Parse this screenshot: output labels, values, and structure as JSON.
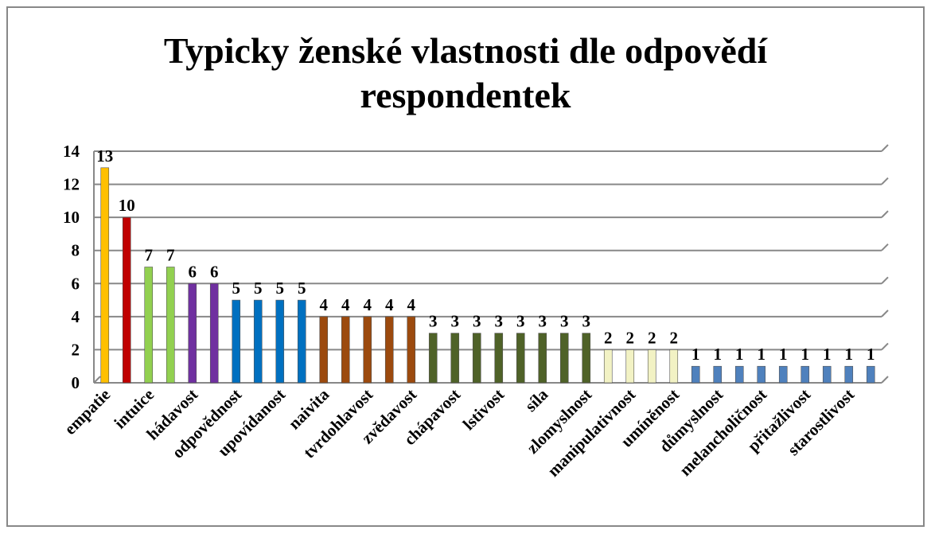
{
  "chart_data": {
    "type": "bar",
    "title": "Typicky ženské vlastnosti dle odpovědí respondentek",
    "categories": [
      "empatie",
      null,
      "intuice",
      null,
      "hádavost",
      null,
      "odpovědnost",
      null,
      "upovídanost",
      null,
      "naivita",
      null,
      "tvrdohlavost",
      null,
      "zvědavost",
      null,
      "chápavost",
      null,
      "lstivost",
      null,
      "síla",
      null,
      "zlomyslnost",
      null,
      "manipulativnost",
      null,
      "umíněnost",
      null,
      "důmyslnost",
      null,
      "melancholičnost",
      null,
      "přitažlivost",
      null,
      "starostlivost",
      null
    ],
    "values": [
      13,
      10,
      7,
      7,
      6,
      6,
      5,
      5,
      5,
      5,
      4,
      4,
      4,
      4,
      4,
      3,
      3,
      3,
      3,
      3,
      3,
      3,
      3,
      2,
      2,
      2,
      2,
      1,
      1,
      1,
      1,
      1,
      1,
      1,
      1,
      1
    ],
    "colors": [
      "#FFC000",
      "#C00000",
      "#92D050",
      "#92D050",
      "#7030A0",
      "#7030A0",
      "#0070C0",
      "#0070C0",
      "#0070C0",
      "#0070C0",
      "#9C4A0E",
      "#9C4A0E",
      "#9C4A0E",
      "#9C4A0E",
      "#9C4A0E",
      "#4F6228",
      "#4F6228",
      "#4F6228",
      "#4F6228",
      "#4F6228",
      "#4F6228",
      "#4F6228",
      "#4F6228",
      "#F2F2C4",
      "#F2F2C4",
      "#F2F2C4",
      "#F2F2C4",
      "#4F81BD",
      "#4F81BD",
      "#4F81BD",
      "#4F81BD",
      "#4F81BD",
      "#4F81BD",
      "#4F81BD",
      "#4F81BD",
      "#4F81BD"
    ],
    "ylim": [
      0,
      14
    ],
    "yticks": [
      0,
      2,
      4,
      6,
      8,
      10,
      12,
      14
    ],
    "grid": true
  }
}
